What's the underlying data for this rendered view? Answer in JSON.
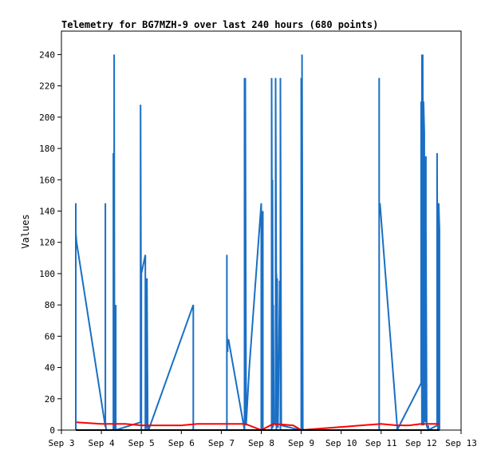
{
  "chart_data": {
    "type": "line",
    "title": "Telemetry for BG7MZH-9 over last 240 hours (680 points)",
    "xlabel": "",
    "ylabel": "Values",
    "xlim": [
      0,
      10
    ],
    "ylim": [
      0,
      255
    ],
    "x_ticks": [
      {
        "v": 0,
        "label": "Sep 3"
      },
      {
        "v": 1,
        "label": "Sep 4"
      },
      {
        "v": 2,
        "label": "Sep 5"
      },
      {
        "v": 3,
        "label": "Sep 6"
      },
      {
        "v": 4,
        "label": "Sep 7"
      },
      {
        "v": 5,
        "label": "Sep 8"
      },
      {
        "v": 6,
        "label": "Sep 9"
      },
      {
        "v": 7,
        "label": "Sep 10"
      },
      {
        "v": 8,
        "label": "Sep 11"
      },
      {
        "v": 9,
        "label": "Sep 12"
      },
      {
        "v": 10,
        "label": "Sep 13"
      }
    ],
    "y_ticks": [
      0,
      20,
      40,
      60,
      80,
      100,
      120,
      140,
      160,
      180,
      200,
      220,
      240
    ],
    "grid": false,
    "legend": "none",
    "series": [
      {
        "color": "#1a6fc4",
        "x": [
          0.36,
          0.36,
          0.36,
          0.38,
          1.1,
          1.1,
          1.1,
          1.12,
          1.3,
          1.3,
          1.32,
          1.32,
          1.33,
          1.35,
          1.35,
          1.36,
          1.36,
          1.36,
          1.98,
          1.98,
          2.0,
          2.0,
          2.1,
          2.1,
          2.12,
          2.14,
          2.16,
          2.16,
          2.18,
          2.18,
          3.3,
          3.3,
          3.3,
          3.3,
          4.14,
          4.14,
          4.14,
          4.16,
          4.16,
          4.18,
          4.58,
          4.58,
          4.6,
          4.6,
          4.62,
          4.62,
          4.62,
          4.7,
          5.0,
          5.0,
          5.02,
          5.02,
          5.04,
          5.04,
          5.04,
          5.26,
          5.26,
          5.28,
          5.28,
          5.3,
          5.3,
          5.32,
          5.34,
          5.36,
          5.36,
          5.38,
          5.38,
          5.38,
          5.4,
          5.4,
          5.4,
          5.42,
          5.42,
          5.42,
          5.46,
          5.46,
          5.48,
          5.48,
          5.48,
          5.5,
          5.98,
          6.0,
          6.0,
          6.02,
          6.02,
          6.04,
          6.04,
          6.04,
          6.06,
          6.06,
          7.95,
          7.95,
          7.95,
          7.97,
          7.97,
          8.4,
          8.4,
          8.4,
          8.4,
          9.0,
          9.0,
          9.02,
          9.02,
          9.04,
          9.04,
          9.06,
          9.06,
          9.08,
          9.08,
          9.1,
          9.12,
          9.12,
          9.14,
          9.14,
          9.16,
          9.16,
          9.18,
          9.18,
          9.18,
          9.4,
          9.4,
          9.42,
          9.42,
          9.44,
          9.44,
          9.46,
          9.46,
          9.46
        ],
        "y": [
          0,
          145,
          126,
          120,
          2,
          145,
          5,
          0,
          0,
          177,
          0,
          240,
          2,
          80,
          0,
          80,
          3,
          0,
          5,
          208,
          0,
          100,
          112,
          0,
          2,
          97,
          2,
          0,
          3,
          0,
          80,
          0,
          80,
          0,
          0,
          112,
          62,
          50,
          55,
          58,
          0,
          225,
          33,
          225,
          5,
          30,
          3,
          40,
          145,
          0,
          140,
          0,
          2,
          140,
          0,
          0,
          225,
          1,
          160,
          2,
          80,
          5,
          5,
          3,
          225,
          60,
          100,
          0,
          80,
          97,
          2,
          2,
          4,
          4,
          90,
          95,
          95,
          0,
          225,
          3,
          0,
          0,
          225,
          0,
          240,
          0,
          3,
          1,
          0,
          0,
          0,
          225,
          145,
          140,
          145,
          3,
          3,
          3,
          0,
          30,
          210,
          3,
          240,
          5,
          240,
          3,
          210,
          190,
          180,
          5,
          175,
          130,
          5,
          3,
          1,
          1,
          3,
          2,
          0,
          3,
          177,
          0,
          120,
          2,
          145,
          128,
          3,
          0
        ]
      },
      {
        "color": "#ff0000",
        "x": [
          0.38,
          1.0,
          1.2,
          1.6,
          2.0,
          2.4,
          3.0,
          3.4,
          4.0,
          4.6,
          5.0,
          5.3,
          5.8,
          6.0,
          6.5,
          7.0,
          7.5,
          8.0,
          8.4,
          8.7,
          9.0,
          9.3,
          9.46
        ],
        "y": [
          5,
          4,
          4,
          4,
          3,
          3,
          3,
          4,
          4,
          4,
          0,
          4,
          3,
          0,
          1,
          2,
          3,
          4,
          3,
          3,
          4,
          4,
          4
        ]
      },
      {
        "color": "#000000",
        "x": [
          0.36,
          9.46
        ],
        "y": [
          0,
          0
        ]
      }
    ]
  }
}
